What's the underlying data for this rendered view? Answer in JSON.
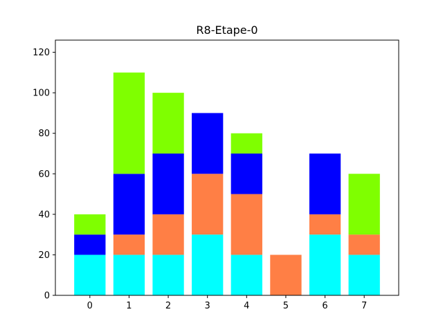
{
  "chart_data": {
    "type": "bar",
    "stacked": true,
    "title": "R8-Etape-0",
    "xlabel": "",
    "ylabel": "",
    "categories": [
      "0",
      "1",
      "2",
      "3",
      "4",
      "5",
      "6",
      "7"
    ],
    "x_ticks": [
      "0",
      "1",
      "2",
      "3",
      "4",
      "5",
      "6",
      "7"
    ],
    "y_ticks": [
      "0",
      "20",
      "40",
      "60",
      "80",
      "100",
      "120"
    ],
    "ylim": [
      0,
      126
    ],
    "grid": false,
    "legend": "none",
    "series": [
      {
        "color": "#00ffff",
        "values": [
          20,
          20,
          20,
          30,
          20,
          0,
          30,
          20
        ]
      },
      {
        "color": "#ff7f45",
        "values": [
          0,
          10,
          20,
          30,
          30,
          20,
          10,
          10
        ]
      },
      {
        "color": "#0000ff",
        "values": [
          10,
          30,
          30,
          30,
          20,
          0,
          30,
          0
        ]
      },
      {
        "color": "#7fff00",
        "values": [
          10,
          50,
          30,
          0,
          10,
          0,
          0,
          30
        ]
      }
    ]
  }
}
